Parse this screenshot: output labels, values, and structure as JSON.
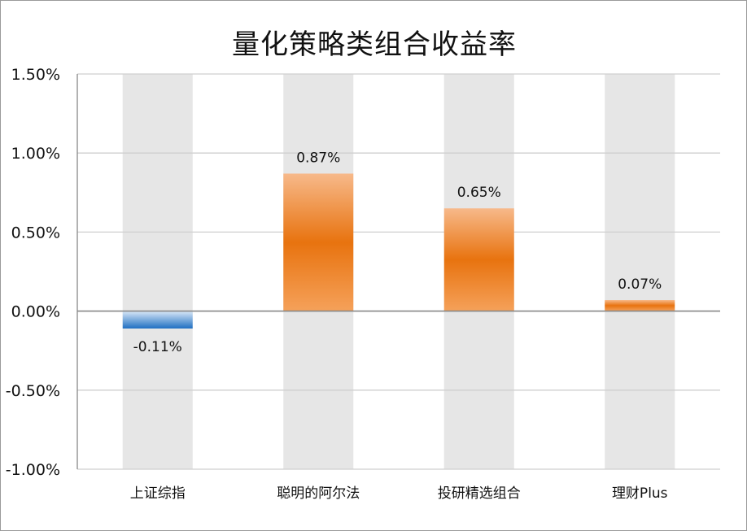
{
  "chart_data": {
    "type": "bar",
    "title": "量化策略类组合收益率",
    "categories": [
      "上证综指",
      "聪明的阿尔法",
      "投研精选组合",
      "理财Plus"
    ],
    "values": [
      -0.11,
      0.87,
      0.65,
      0.07
    ],
    "data_labels": [
      "-0.11%",
      "0.87%",
      "0.65%",
      "0.07%"
    ],
    "value_unit": "%",
    "ylim": [
      -1.0,
      1.5
    ],
    "yticks": [
      1.5,
      1.0,
      0.5,
      0.0,
      -0.5,
      -1.0
    ],
    "ytick_labels": [
      "1.50%",
      "1.00%",
      "0.50%",
      "0.00%",
      "-0.50%",
      "-1.00%"
    ],
    "grid": true,
    "legend": "none",
    "colors": {
      "positive_dark": "#e8730f",
      "positive_light": "#f7b98a",
      "negative_dark": "#1f6fc2",
      "negative_light": "#d9e8f7",
      "background_column": "#e6e6e6",
      "gridline": "#cfcfcf",
      "axis": "#888888",
      "text": "#111111"
    }
  }
}
